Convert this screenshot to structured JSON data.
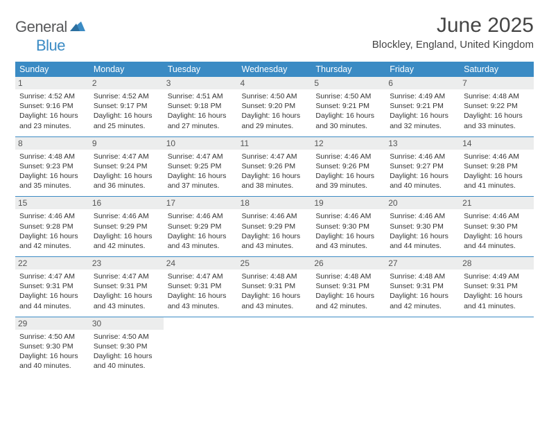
{
  "logo": {
    "textGray": "General",
    "textBlue": "Blue"
  },
  "title": "June 2025",
  "location": "Blockley, England, United Kingdom",
  "colors": {
    "header_bg": "#3b8bc4",
    "header_text": "#ffffff",
    "daynum_bg": "#eceded",
    "border": "#3b8bc4",
    "body_text": "#333333",
    "title_text": "#444444"
  },
  "layout": {
    "columns": 7,
    "rows": 5,
    "font_family": "Arial",
    "cell_font_size": 10.5,
    "header_font_size": 12.5,
    "title_font_size": 30
  },
  "weekdays": [
    "Sunday",
    "Monday",
    "Tuesday",
    "Wednesday",
    "Thursday",
    "Friday",
    "Saturday"
  ],
  "labels": {
    "sunrise": "Sunrise:",
    "sunset": "Sunset:",
    "daylight": "Daylight:"
  },
  "days": [
    {
      "n": "1",
      "sr": "4:52 AM",
      "ss": "9:16 PM",
      "dl": "16 hours and 23 minutes."
    },
    {
      "n": "2",
      "sr": "4:52 AM",
      "ss": "9:17 PM",
      "dl": "16 hours and 25 minutes."
    },
    {
      "n": "3",
      "sr": "4:51 AM",
      "ss": "9:18 PM",
      "dl": "16 hours and 27 minutes."
    },
    {
      "n": "4",
      "sr": "4:50 AM",
      "ss": "9:20 PM",
      "dl": "16 hours and 29 minutes."
    },
    {
      "n": "5",
      "sr": "4:50 AM",
      "ss": "9:21 PM",
      "dl": "16 hours and 30 minutes."
    },
    {
      "n": "6",
      "sr": "4:49 AM",
      "ss": "9:21 PM",
      "dl": "16 hours and 32 minutes."
    },
    {
      "n": "7",
      "sr": "4:48 AM",
      "ss": "9:22 PM",
      "dl": "16 hours and 33 minutes."
    },
    {
      "n": "8",
      "sr": "4:48 AM",
      "ss": "9:23 PM",
      "dl": "16 hours and 35 minutes."
    },
    {
      "n": "9",
      "sr": "4:47 AM",
      "ss": "9:24 PM",
      "dl": "16 hours and 36 minutes."
    },
    {
      "n": "10",
      "sr": "4:47 AM",
      "ss": "9:25 PM",
      "dl": "16 hours and 37 minutes."
    },
    {
      "n": "11",
      "sr": "4:47 AM",
      "ss": "9:26 PM",
      "dl": "16 hours and 38 minutes."
    },
    {
      "n": "12",
      "sr": "4:46 AM",
      "ss": "9:26 PM",
      "dl": "16 hours and 39 minutes."
    },
    {
      "n": "13",
      "sr": "4:46 AM",
      "ss": "9:27 PM",
      "dl": "16 hours and 40 minutes."
    },
    {
      "n": "14",
      "sr": "4:46 AM",
      "ss": "9:28 PM",
      "dl": "16 hours and 41 minutes."
    },
    {
      "n": "15",
      "sr": "4:46 AM",
      "ss": "9:28 PM",
      "dl": "16 hours and 42 minutes."
    },
    {
      "n": "16",
      "sr": "4:46 AM",
      "ss": "9:29 PM",
      "dl": "16 hours and 42 minutes."
    },
    {
      "n": "17",
      "sr": "4:46 AM",
      "ss": "9:29 PM",
      "dl": "16 hours and 43 minutes."
    },
    {
      "n": "18",
      "sr": "4:46 AM",
      "ss": "9:29 PM",
      "dl": "16 hours and 43 minutes."
    },
    {
      "n": "19",
      "sr": "4:46 AM",
      "ss": "9:30 PM",
      "dl": "16 hours and 43 minutes."
    },
    {
      "n": "20",
      "sr": "4:46 AM",
      "ss": "9:30 PM",
      "dl": "16 hours and 44 minutes."
    },
    {
      "n": "21",
      "sr": "4:46 AM",
      "ss": "9:30 PM",
      "dl": "16 hours and 44 minutes."
    },
    {
      "n": "22",
      "sr": "4:47 AM",
      "ss": "9:31 PM",
      "dl": "16 hours and 44 minutes."
    },
    {
      "n": "23",
      "sr": "4:47 AM",
      "ss": "9:31 PM",
      "dl": "16 hours and 43 minutes."
    },
    {
      "n": "24",
      "sr": "4:47 AM",
      "ss": "9:31 PM",
      "dl": "16 hours and 43 minutes."
    },
    {
      "n": "25",
      "sr": "4:48 AM",
      "ss": "9:31 PM",
      "dl": "16 hours and 43 minutes."
    },
    {
      "n": "26",
      "sr": "4:48 AM",
      "ss": "9:31 PM",
      "dl": "16 hours and 42 minutes."
    },
    {
      "n": "27",
      "sr": "4:48 AM",
      "ss": "9:31 PM",
      "dl": "16 hours and 42 minutes."
    },
    {
      "n": "28",
      "sr": "4:49 AM",
      "ss": "9:31 PM",
      "dl": "16 hours and 41 minutes."
    },
    {
      "n": "29",
      "sr": "4:50 AM",
      "ss": "9:30 PM",
      "dl": "16 hours and 40 minutes."
    },
    {
      "n": "30",
      "sr": "4:50 AM",
      "ss": "9:30 PM",
      "dl": "16 hours and 40 minutes."
    }
  ]
}
